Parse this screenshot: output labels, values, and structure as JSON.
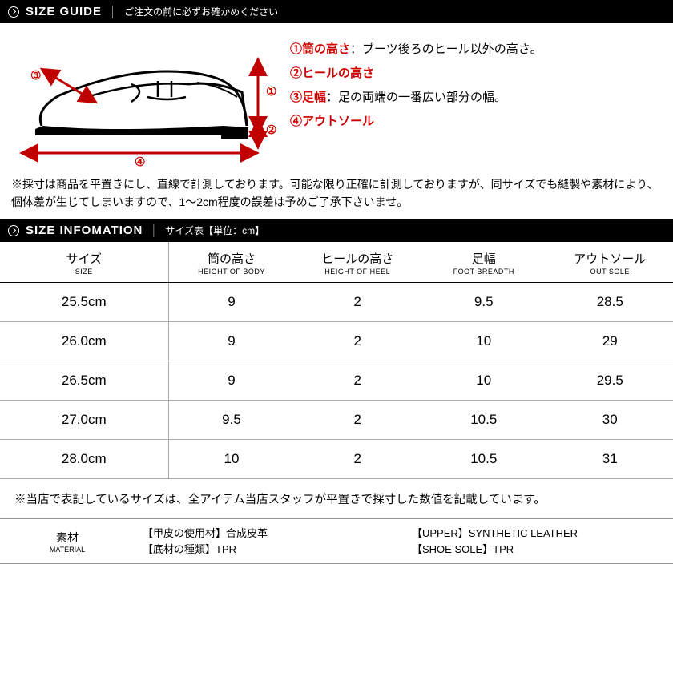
{
  "header_guide": {
    "title": "SIZE GUIDE",
    "sub": "ご注文の前に必ずお確かめください"
  },
  "header_info": {
    "title": "SIZE INFOMATION",
    "sub": "サイズ表【単位：cm】"
  },
  "legend": [
    {
      "num": "①",
      "term": "筒の高さ",
      "desc": "：ブーツ後ろのヒール以外の高さ。"
    },
    {
      "num": "②",
      "term": "ヒールの高さ",
      "desc": ""
    },
    {
      "num": "③",
      "term": "足幅",
      "desc": "：足の両端の一番広い部分の幅。"
    },
    {
      "num": "④",
      "term": "アウトソール",
      "desc": ""
    }
  ],
  "note1": "※採寸は商品を平置きにし、直線で計測しております。可能な限り正確に計測しておりますが、同サイズでも縫製や素材により、個体差が生じてしまいますので、1～2cm程度の誤差は予めご了承下さいませ。",
  "columns": [
    {
      "jp": "サイズ",
      "en": "SIZE"
    },
    {
      "jp": "筒の高さ",
      "en": "HEIGHT OF BODY"
    },
    {
      "jp": "ヒールの高さ",
      "en": "HEIGHT OF HEEL"
    },
    {
      "jp": "足幅",
      "en": "FOOT BREADTH"
    },
    {
      "jp": "アウトソール",
      "en": "OUT SOLE"
    }
  ],
  "rows": [
    {
      "size": "25.5cm",
      "body": "9",
      "heel": "2",
      "breadth": "9.5",
      "outsole": "28.5"
    },
    {
      "size": "26.0cm",
      "body": "9",
      "heel": "2",
      "breadth": "10",
      "outsole": "29"
    },
    {
      "size": "26.5cm",
      "body": "9",
      "heel": "2",
      "breadth": "10",
      "outsole": "29.5"
    },
    {
      "size": "27.0cm",
      "body": "9.5",
      "heel": "2",
      "breadth": "10.5",
      "outsole": "30"
    },
    {
      "size": "28.0cm",
      "body": "10",
      "heel": "2",
      "breadth": "10.5",
      "outsole": "31"
    }
  ],
  "note2": "※当店で表記しているサイズは、全アイテム当店スタッフが平置きで採寸した数値を記載しています。",
  "material": {
    "label_jp": "素材",
    "label_en": "MATERIAL",
    "jp1": "【甲皮の使用材】合成皮革",
    "jp2": "【底材の種類】TPR",
    "en1": "【UPPER】SYNTHETIC LEATHER",
    "en2": "【SHOE SOLE】TPR"
  },
  "diagram_labels": {
    "n1": "①",
    "n2": "②",
    "n3": "③",
    "n4": "④"
  },
  "colors": {
    "accent": "#c00000",
    "header_bg": "#000000"
  }
}
